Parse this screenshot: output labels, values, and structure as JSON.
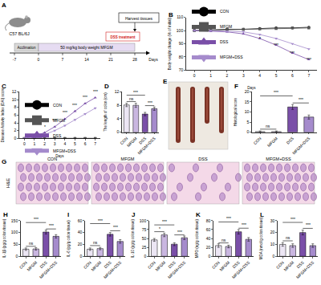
{
  "diagram": {
    "panel": "A",
    "mouse": "C57 BL/6J",
    "stages": [
      "Acclimation",
      "50 mg/kg body weight MFGM",
      "DSS treatment"
    ],
    "end": "Harvest tissues",
    "ticks": [
      "-7",
      "0",
      "7",
      "14",
      "21",
      "28"
    ],
    "unit": "Days"
  },
  "photo": {
    "panel": "E"
  },
  "histology": {
    "panel": "G",
    "row_label": "H&E",
    "columns": [
      "CON",
      "MFGM",
      "DSS",
      "MFGM+DSS"
    ]
  },
  "chart_data": [
    {
      "panel": "B",
      "type": "line",
      "x": [
        0,
        1,
        2,
        3,
        4,
        5,
        6,
        7
      ],
      "xlabel": "Days",
      "ylabel": "Body weight change (% of initial)",
      "xlim": [
        -0.5,
        7.5
      ],
      "xticks": [
        0,
        1,
        2,
        3,
        4,
        5,
        6,
        7
      ],
      "ylim": [
        70,
        110
      ],
      "yticks": [
        70,
        80,
        90,
        100,
        110
      ],
      "grid": false,
      "legend": "bottom left",
      "series": [
        {
          "name": "CON",
          "color": "#000000",
          "marker": "circle",
          "line_style": "solid",
          "values": [
            100,
            100.5,
            101,
            101,
            101.5,
            102,
            102,
            102.5
          ]
        },
        {
          "name": "MFGM",
          "color": "#555555",
          "marker": "square",
          "line_style": "solid",
          "values": [
            100,
            100.3,
            100.8,
            101,
            101.2,
            101.5,
            102,
            102
          ]
        },
        {
          "name": "DSS",
          "color": "#7a4fa8",
          "marker": "triangle-up",
          "line_style": "solid",
          "values": [
            100,
            99.5,
            99,
            97.5,
            94,
            89,
            83,
            78
          ]
        },
        {
          "name": "MFGM+DSS",
          "color": "#a58bcc",
          "marker": "triangle-down",
          "line_style": "solid",
          "values": [
            100,
            100,
            99.5,
            99,
            97,
            94,
            90,
            86
          ]
        }
      ],
      "annotations": [
        {
          "x": 4,
          "y": 91,
          "text": "*"
        },
        {
          "x": 5,
          "y": 86,
          "text": "***"
        },
        {
          "x": 6,
          "y": 80,
          "text": "***"
        },
        {
          "x": 7,
          "y": 75,
          "text": "***"
        }
      ]
    },
    {
      "panel": "C",
      "type": "line",
      "x": [
        0,
        1,
        2,
        3,
        4,
        5,
        6,
        7
      ],
      "xlabel": "Days",
      "ylabel": "Disease Activity Index (DAI) score",
      "xlim": [
        -0.5,
        7.5
      ],
      "xticks": [
        0,
        1,
        2,
        3,
        4,
        5,
        6,
        7
      ],
      "ylim": [
        0,
        12
      ],
      "yticks": [
        0,
        2,
        4,
        6,
        8,
        10,
        12
      ],
      "grid": false,
      "legend": "top left",
      "series": [
        {
          "name": "CON",
          "color": "#000000",
          "marker": "circle",
          "line_style": "solid",
          "values": [
            0,
            0,
            0,
            0,
            0,
            0,
            0,
            0
          ]
        },
        {
          "name": "MFGM",
          "color": "#555555",
          "marker": "square",
          "line_style": "solid",
          "values": [
            0,
            0,
            0,
            0,
            0,
            0,
            0,
            0
          ]
        },
        {
          "name": "DSS",
          "color": "#7a4fa8",
          "marker": "triangle-up",
          "line_style": "solid",
          "values": [
            0,
            0.5,
            1.5,
            3,
            5,
            7,
            9,
            10.5
          ]
        },
        {
          "name": "MFGM+DSS",
          "color": "#a58bcc",
          "marker": "triangle-down",
          "line_style": "solid",
          "values": [
            0,
            0.3,
            1,
            2,
            3.3,
            4.8,
            6.3,
            7.8
          ]
        }
      ],
      "annotations": [
        {
          "x": 2,
          "y": 2,
          "text": "*"
        },
        {
          "x": 3,
          "y": 3.6,
          "text": "***"
        },
        {
          "x": 4,
          "y": 5.6,
          "text": "***"
        },
        {
          "x": 5,
          "y": 7.6,
          "text": "***"
        },
        {
          "x": 6,
          "y": 9.6,
          "text": "***"
        },
        {
          "x": 7,
          "y": 11.1,
          "text": "***"
        }
      ]
    },
    {
      "panel": "D",
      "type": "bar",
      "ylabel": "The length of colon (cm)",
      "categories": [
        "CON",
        "MFGM",
        "DSS",
        "MFGM+DSS"
      ],
      "values": [
        8.1,
        8.0,
        5.4,
        7.0
      ],
      "errors": [
        0.5,
        0.6,
        0.5,
        0.5
      ],
      "colors": [
        "#ece6f4",
        "#c9b6e0",
        "#7a4fa8",
        "#a58bcc"
      ],
      "ylim": [
        0,
        12
      ],
      "yticks": [
        0,
        4,
        8,
        12
      ],
      "grid": false,
      "significance": [
        {
          "from": 0,
          "to": 1,
          "y": 9.1,
          "text": "ns"
        },
        {
          "from": 0,
          "to": 2,
          "y": 11,
          "text": "***"
        },
        {
          "from": 2,
          "to": 3,
          "y": 7.9,
          "text": "***"
        }
      ]
    },
    {
      "panel": "F",
      "type": "bar",
      "ylabel": "Histological score",
      "categories": [
        "CON",
        "MFGM",
        "DSS",
        "MFGM+DSS"
      ],
      "values": [
        0.3,
        0.3,
        12.5,
        7.5
      ],
      "errors": [
        0.3,
        0.3,
        1.2,
        1.0
      ],
      "colors": [
        "#ece6f4",
        "#c9b6e0",
        "#7a4fa8",
        "#a58bcc"
      ],
      "ylim": [
        0,
        20
      ],
      "yticks": [
        0,
        5,
        10,
        15,
        20
      ],
      "grid": false,
      "significance": [
        {
          "from": 0,
          "to": 1,
          "y": 1.5,
          "text": "ns"
        },
        {
          "from": 0,
          "to": 2,
          "y": 18,
          "text": "***"
        },
        {
          "from": 2,
          "to": 3,
          "y": 14.5,
          "text": "***"
        }
      ]
    },
    {
      "panel": "H",
      "type": "bar",
      "ylabel": "IL-1β (pg/g colon tissue)",
      "categories": [
        "CON",
        "MFGM",
        "DSS",
        "MFGM+DSS"
      ],
      "values": [
        30,
        31,
        102,
        84
      ],
      "errors": [
        5,
        5,
        8,
        7
      ],
      "colors": [
        "#ece6f4",
        "#c9b6e0",
        "#7a4fa8",
        "#a58bcc"
      ],
      "ylim": [
        0,
        150
      ],
      "yticks": [
        0,
        50,
        100,
        150
      ],
      "grid": false,
      "significance": [
        {
          "from": 0,
          "to": 1,
          "y": 42,
          "text": "ns"
        },
        {
          "from": 0,
          "to": 2,
          "y": 142,
          "text": "***"
        },
        {
          "from": 2,
          "to": 3,
          "y": 115,
          "text": "***"
        }
      ]
    },
    {
      "panel": "I",
      "type": "bar",
      "ylabel": "IL-6 (pg/g colon tissue)",
      "categories": [
        "CON",
        "MFGM",
        "DSS",
        "MFGM+DSS"
      ],
      "values": [
        12,
        13,
        37,
        25
      ],
      "errors": [
        2,
        2,
        3,
        3
      ],
      "colors": [
        "#ece6f4",
        "#c9b6e0",
        "#7a4fa8",
        "#a58bcc"
      ],
      "ylim": [
        0,
        60
      ],
      "yticks": [
        0,
        20,
        40,
        60
      ],
      "grid": false,
      "significance": [
        {
          "from": 0,
          "to": 1,
          "y": 18,
          "text": "ns"
        },
        {
          "from": 0,
          "to": 2,
          "y": 55,
          "text": "***"
        },
        {
          "from": 2,
          "to": 3,
          "y": 43,
          "text": "***"
        }
      ]
    },
    {
      "panel": "J",
      "type": "bar",
      "ylabel": "IL-10 (pg/g colon tissue)",
      "categories": [
        "CON",
        "MFGM",
        "DSS",
        "MFGM+DSS"
      ],
      "values": [
        46,
        60,
        34,
        52
      ],
      "errors": [
        4,
        5,
        4,
        5
      ],
      "colors": [
        "#ece6f4",
        "#c9b6e0",
        "#7a4fa8",
        "#a58bcc"
      ],
      "ylim": [
        0,
        100
      ],
      "yticks": [
        0,
        25,
        50,
        75,
        100
      ],
      "grid": false,
      "significance": [
        {
          "from": 0,
          "to": 1,
          "y": 69,
          "text": "*"
        },
        {
          "from": 0,
          "to": 2,
          "y": 88,
          "text": "***"
        },
        {
          "from": 2,
          "to": 3,
          "y": 60,
          "text": "***"
        }
      ]
    },
    {
      "panel": "K",
      "type": "bar",
      "ylabel": "MPO (ng/g colon tissue)",
      "categories": [
        "CON",
        "MFGM",
        "DSS",
        "MFGM+DSS"
      ],
      "values": [
        24,
        22,
        55,
        38
      ],
      "errors": [
        4,
        3,
        5,
        4
      ],
      "colors": [
        "#ece6f4",
        "#c9b6e0",
        "#7a4fa8",
        "#a58bcc"
      ],
      "ylim": [
        0,
        80
      ],
      "yticks": [
        0,
        20,
        40,
        60,
        80
      ],
      "grid": false,
      "significance": [
        {
          "from": 0,
          "to": 1,
          "y": 30,
          "text": "ns"
        },
        {
          "from": 0,
          "to": 2,
          "y": 77,
          "text": "***"
        },
        {
          "from": 2,
          "to": 3,
          "y": 63,
          "text": "***"
        }
      ]
    },
    {
      "panel": "L",
      "type": "bar",
      "ylabel": "MDA (nmol/g colon tissue)",
      "categories": [
        "CON",
        "MFGM",
        "DSS",
        "MFGM+DSS"
      ],
      "values": [
        10,
        9,
        20,
        9
      ],
      "errors": [
        1.5,
        1.5,
        2,
        1.5
      ],
      "colors": [
        "#ece6f4",
        "#c9b6e0",
        "#7a4fa8",
        "#a58bcc"
      ],
      "ylim": [
        0,
        30
      ],
      "yticks": [
        0,
        10,
        20,
        30
      ],
      "grid": false,
      "significance": [
        {
          "from": 0,
          "to": 1,
          "y": 13,
          "text": "ns"
        },
        {
          "from": 0,
          "to": 2,
          "y": 28.5,
          "text": "***"
        },
        {
          "from": 2,
          "to": 3,
          "y": 23.5,
          "text": "***"
        }
      ]
    }
  ]
}
